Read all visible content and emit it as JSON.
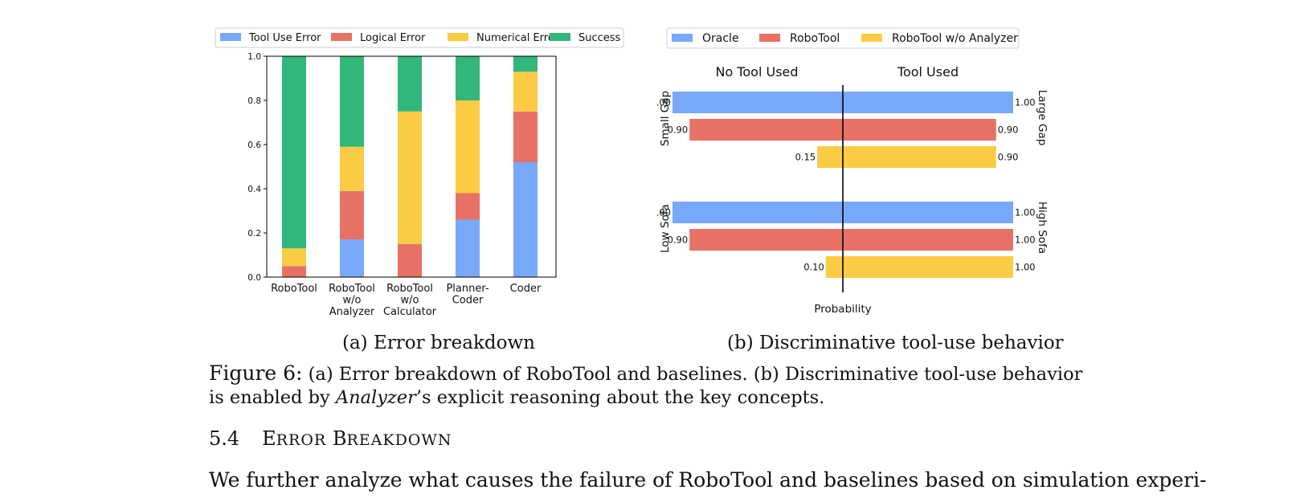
{
  "chart_data": [
    {
      "type": "bar",
      "stacked": true,
      "categories": [
        "RoboTool",
        "RoboTool\nw/o\nAnalyzer",
        "RoboTool\nw/o\nCalculator",
        "Planner-\nCoder",
        "Coder"
      ],
      "series": [
        {
          "name": "Tool Use Error",
          "color": "#78a8f8",
          "values": [
            0.0,
            0.17,
            0.0,
            0.26,
            0.52
          ]
        },
        {
          "name": "Logical Error",
          "color": "#e87166",
          "values": [
            0.05,
            0.22,
            0.15,
            0.12,
            0.23
          ]
        },
        {
          "name": "Numerical Error",
          "color": "#fccb44",
          "values": [
            0.08,
            0.2,
            0.6,
            0.42,
            0.18
          ]
        },
        {
          "name": "Success",
          "color": "#33b679",
          "values": [
            0.87,
            0.41,
            0.25,
            0.2,
            0.07
          ]
        }
      ],
      "yticks": [
        "0.0",
        "0.2",
        "0.4",
        "0.6",
        "0.8",
        "1.0"
      ],
      "ylim": [
        0,
        1
      ],
      "legend": "top"
    },
    {
      "type": "bar",
      "orientation": "horizontal-diverging",
      "series": [
        {
          "name": "Oracle",
          "color": "#78a8f8"
        },
        {
          "name": "RoboTool",
          "color": "#e87166"
        },
        {
          "name": "RoboTool w/o Analyzer",
          "color": "#fccb44"
        }
      ],
      "left_title": "No Tool Used",
      "right_title": "Tool Used",
      "xlabel": "Probability",
      "xlim": [
        -1,
        1
      ],
      "groups": [
        {
          "left_label": "Small Gap",
          "right_label": "Large Gap",
          "bars": [
            {
              "left": 1.0,
              "right": 1.0,
              "left_text": "1.00",
              "right_text": "1.00"
            },
            {
              "left": 0.9,
              "right": 0.9,
              "left_text": "0.90",
              "right_text": "0.90"
            },
            {
              "left": 0.15,
              "right": 0.9,
              "left_text": "0.15",
              "right_text": "0.90"
            }
          ]
        },
        {
          "left_label": "Low Sofa",
          "right_label": "High Sofa",
          "bars": [
            {
              "left": 1.0,
              "right": 1.0,
              "left_text": "1.00",
              "right_text": "1.00"
            },
            {
              "left": 0.9,
              "right": 1.0,
              "left_text": "0.90",
              "right_text": "1.00"
            },
            {
              "left": 0.1,
              "right": 1.0,
              "left_text": "0.10",
              "right_text": "1.00"
            }
          ]
        }
      ],
      "legend": "top"
    }
  ],
  "subcaption_a": "(a) Error breakdown",
  "subcaption_b": "(b) Discriminative tool-use behavior",
  "caption": {
    "label": "Figure 6:",
    "text1": "(a) Error breakdown of RoboTool and baselines. (b) Discriminative tool-use behavior is enabled by",
    "emph": "Analyzer",
    "text2": "’s explicit reasoning about the key concepts."
  },
  "section": {
    "number": "5.4",
    "title_first": "E",
    "title_rest1": "RROR",
    "title_first2": "B",
    "title_rest2": "REAKDOWN"
  },
  "body": "We further analyze what causes the failure of RoboTool and baselines based on simulation experi-"
}
